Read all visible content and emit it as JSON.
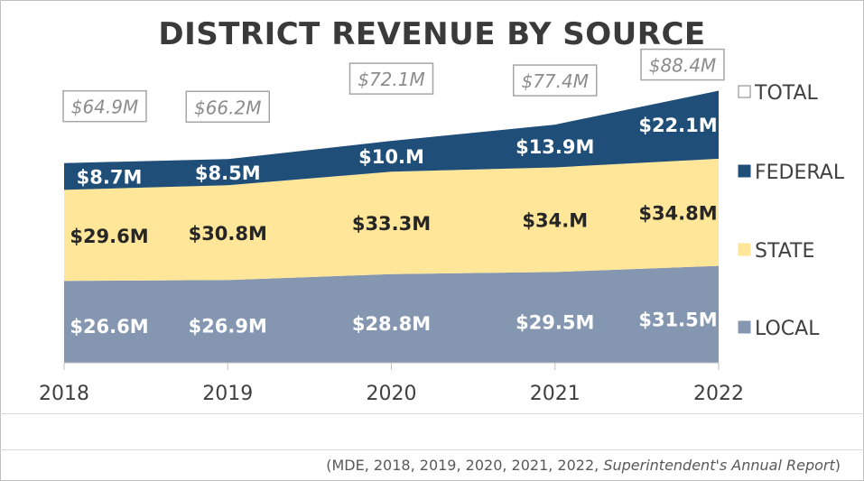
{
  "chart_data": {
    "type": "area",
    "stacked": true,
    "title": "DISTRICT REVENUE BY SOURCE",
    "categories": [
      "2018",
      "2019",
      "2020",
      "2021",
      "2022"
    ],
    "series": [
      {
        "name": "LOCAL",
        "values": [
          26.6,
          26.9,
          28.8,
          29.5,
          31.5
        ],
        "labels": [
          "$26.6M",
          "$26.9M",
          "$28.8M",
          "$29.5M",
          "$31.5M"
        ],
        "color": "#8496b0"
      },
      {
        "name": "STATE",
        "values": [
          29.6,
          30.8,
          33.3,
          34.0,
          34.8
        ],
        "labels": [
          "$29.6M",
          "$30.8M",
          "$33.3M",
          "$34.M",
          "$34.8M"
        ],
        "color": "#ffe699"
      },
      {
        "name": "FEDERAL",
        "values": [
          8.7,
          8.5,
          10.0,
          13.9,
          22.1
        ],
        "labels": [
          "$8.7M",
          "$8.5M",
          "$10.M",
          "$13.9M",
          "$22.1M"
        ],
        "color": "#1f4e79"
      },
      {
        "name": "TOTAL",
        "values": [
          64.9,
          66.2,
          72.1,
          77.4,
          88.4
        ],
        "labels": [
          "$64.9M",
          "$66.2M",
          "$72.1M",
          "$77.4M",
          "$88.4M"
        ],
        "color": "#ffffff"
      }
    ],
    "ylim": [
      0,
      100
    ],
    "legend": "right",
    "grid": false,
    "xlabel": "",
    "ylabel": ""
  },
  "source": {
    "prefix": "(MDE, 2018, 2019, 2020, 2021, 2022, ",
    "italic": "Superintendent's Annual Report",
    "suffix": ")"
  }
}
